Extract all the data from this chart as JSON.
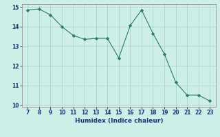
{
  "x": [
    7,
    8,
    9,
    10,
    11,
    12,
    13,
    14,
    15,
    16,
    17,
    18,
    19,
    20,
    21,
    22,
    23
  ],
  "y": [
    14.85,
    14.9,
    14.6,
    14.0,
    13.55,
    13.35,
    13.4,
    13.4,
    12.4,
    14.05,
    14.85,
    13.65,
    12.6,
    11.15,
    10.5,
    10.5,
    10.2
  ],
  "xlim": [
    6.5,
    23.5
  ],
  "ylim": [
    9.9,
    15.15
  ],
  "xticks": [
    7,
    8,
    9,
    10,
    11,
    12,
    13,
    14,
    15,
    16,
    17,
    18,
    19,
    20,
    21,
    22,
    23
  ],
  "yticks": [
    10,
    11,
    12,
    13,
    14,
    15
  ],
  "xlabel": "Humidex (Indice chaleur)",
  "line_color": "#2a7a6a",
  "marker_color": "#2a7a6a",
  "bg_color": "#ceeee8",
  "grid_color": "#aad4cc",
  "label_fontsize": 6.5,
  "tick_fontsize": 5.5
}
